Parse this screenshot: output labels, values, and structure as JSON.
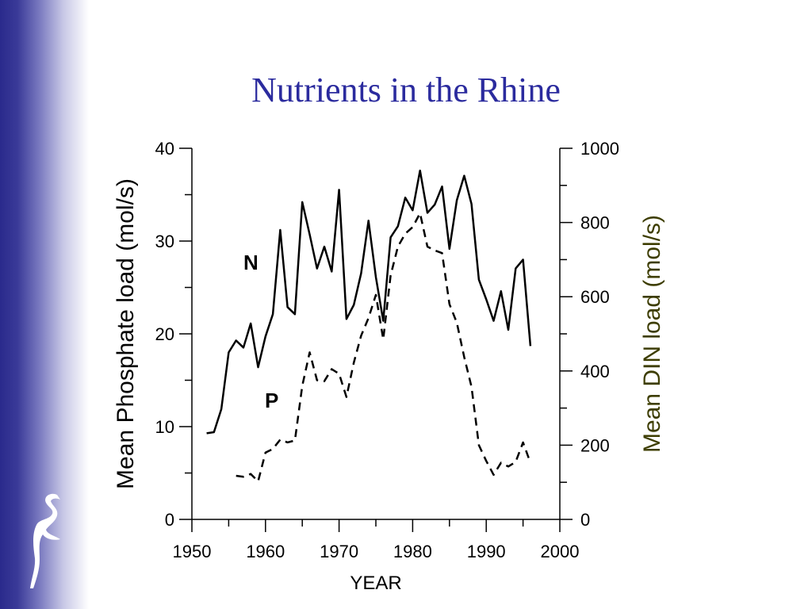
{
  "slide": {
    "title": "Nutrients in the Rhine",
    "colors": {
      "title": "#2b2b9e",
      "right_axis_label": "#3d3d00",
      "band": "#2a2a8c"
    },
    "logo_icon": "cape-cod-silhouette-icon"
  },
  "chart_data": {
    "type": "line",
    "title": "",
    "xlabel": "YEAR",
    "xlim": [
      1950,
      2000
    ],
    "x_ticks": [
      1950,
      1960,
      1970,
      1980,
      1990,
      2000
    ],
    "y_left": {
      "label": "Mean Phosphate load (mol/s)",
      "lim": [
        0,
        40
      ],
      "ticks": [
        0,
        10,
        20,
        30,
        40
      ]
    },
    "y_right": {
      "label": "Mean DIN load (mol/s)",
      "lim": [
        0,
        1000
      ],
      "ticks": [
        0,
        200,
        400,
        600,
        800,
        1000
      ]
    },
    "series": [
      {
        "name": "N",
        "axis": "right",
        "style": "solid",
        "x": [
          1952,
          1953,
          1954,
          1955,
          1956,
          1957,
          1958,
          1959,
          1960,
          1961,
          1962,
          1963,
          1964,
          1965,
          1966,
          1967,
          1968,
          1969,
          1970,
          1971,
          1972,
          1973,
          1974,
          1975,
          1976,
          1977,
          1978,
          1979,
          1980,
          1981,
          1982,
          1983,
          1984,
          1985,
          1986,
          1987,
          1988,
          1989,
          1990,
          1991,
          1992,
          1993,
          1994,
          1995,
          1996
        ],
        "values": [
          232,
          235,
          297,
          450,
          482,
          463,
          528,
          410,
          493,
          553,
          780,
          572,
          553,
          855,
          768,
          676,
          735,
          668,
          888,
          540,
          578,
          663,
          805,
          653,
          535,
          760,
          790,
          867,
          833,
          940,
          826,
          848,
          897,
          729,
          860,
          926,
          850,
          646,
          593,
          535,
          615,
          511,
          676,
          700,
          467
        ]
      },
      {
        "name": "P",
        "axis": "left",
        "style": "dashed",
        "x": [
          1956,
          1957,
          1958,
          1959,
          1960,
          1961,
          1962,
          1963,
          1964,
          1965,
          1966,
          1967,
          1968,
          1969,
          1970,
          1971,
          1972,
          1973,
          1974,
          1975,
          1976,
          1977,
          1978,
          1979,
          1980,
          1981,
          1982,
          1983,
          1984,
          1985,
          1986,
          1987,
          1988,
          1989,
          1990,
          1991,
          1992,
          1993,
          1994,
          1995,
          1996
        ],
        "values": [
          4.7,
          4.6,
          4.9,
          4.1,
          7.2,
          7.6,
          8.6,
          8.3,
          8.5,
          14.4,
          18.0,
          15.0,
          14.9,
          16.2,
          15.7,
          13.2,
          16.9,
          19.8,
          21.7,
          24.2,
          19.4,
          26.3,
          29.4,
          30.8,
          31.5,
          33.0,
          29.4,
          29.0,
          28.7,
          23.2,
          21.2,
          17.5,
          14.3,
          8.0,
          6.3,
          4.8,
          6.1,
          5.7,
          6.2,
          8.3,
          6.1
        ]
      }
    ],
    "legend": "none"
  }
}
